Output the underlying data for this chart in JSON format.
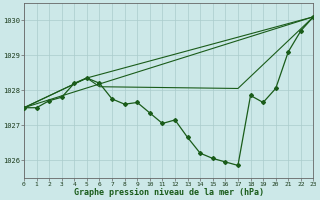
{
  "title": "Graphe pression niveau de la mer (hPa)",
  "bg_color": "#cce8e8",
  "line_color": "#1a5c1a",
  "xlim": [
    0,
    23
  ],
  "ylim": [
    1025.5,
    1030.5
  ],
  "xticks": [
    0,
    1,
    2,
    3,
    4,
    5,
    6,
    7,
    8,
    9,
    10,
    11,
    12,
    13,
    14,
    15,
    16,
    17,
    18,
    19,
    20,
    21,
    22,
    23
  ],
  "yticks": [
    1026,
    1027,
    1028,
    1029,
    1030
  ],
  "main_x": [
    0,
    1,
    2,
    3,
    4,
    5,
    6,
    7,
    8,
    9,
    10,
    11,
    12,
    13,
    14,
    15,
    16,
    17,
    18,
    19,
    20,
    21,
    22,
    23
  ],
  "main_y": [
    1027.5,
    1027.5,
    1027.7,
    1027.8,
    1028.2,
    1028.35,
    1028.2,
    1027.75,
    1027.6,
    1027.65,
    1027.35,
    1027.05,
    1027.15,
    1026.65,
    1026.2,
    1026.05,
    1025.95,
    1025.85,
    1027.85,
    1027.65,
    1028.05,
    1029.1,
    1029.7,
    1030.1
  ],
  "line_straight": {
    "x": [
      0,
      23
    ],
    "y": [
      1027.5,
      1030.1
    ]
  },
  "line_peak1": {
    "x": [
      0,
      5,
      23
    ],
    "y": [
      1027.5,
      1028.35,
      1030.1
    ]
  },
  "line_flat": {
    "x": [
      0,
      5,
      6,
      17,
      23
    ],
    "y": [
      1027.5,
      1028.35,
      1028.1,
      1028.05,
      1030.1
    ]
  },
  "line_bottom": {
    "x": [
      0,
      6,
      17,
      23
    ],
    "y": [
      1027.5,
      1028.1,
      1025.85,
      1030.1
    ]
  }
}
